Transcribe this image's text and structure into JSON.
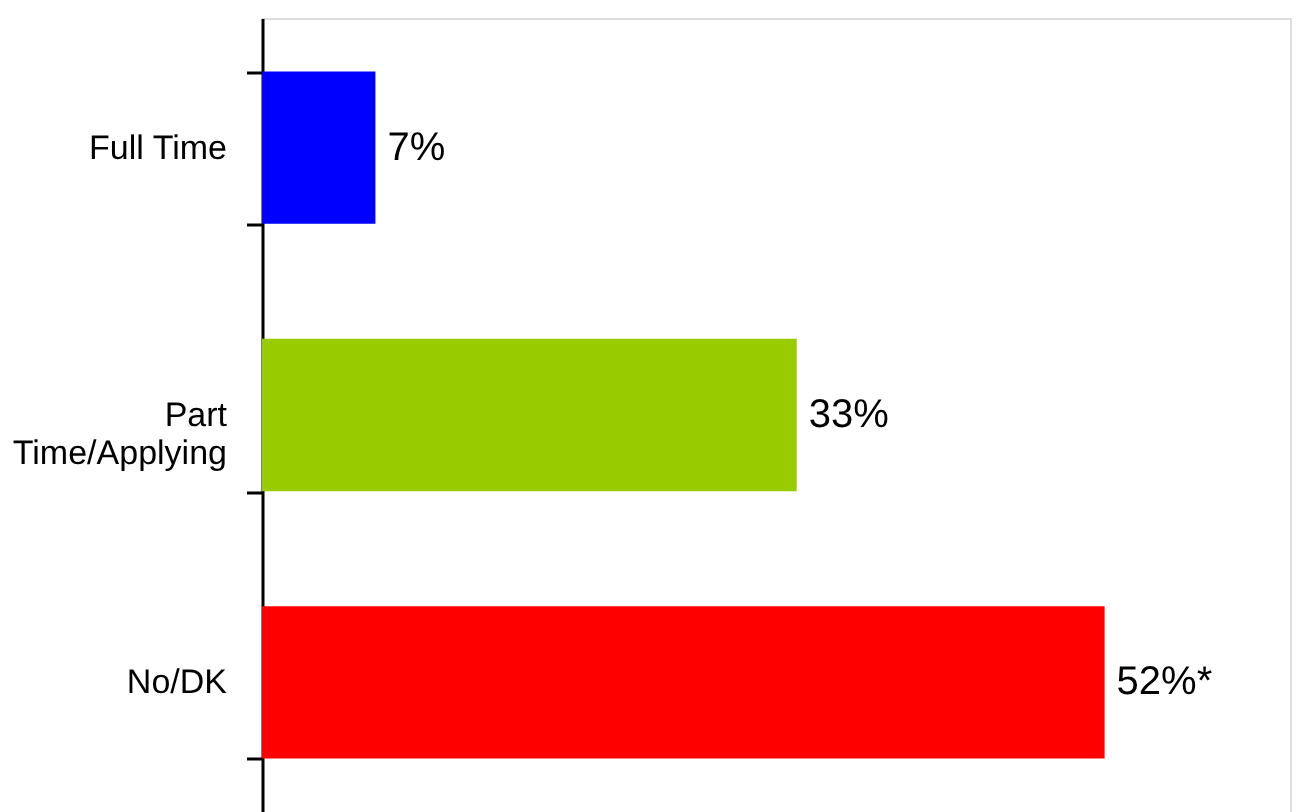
{
  "chart_data": {
    "type": "bar",
    "orientation": "horizontal",
    "categories": [
      "Full Time",
      "Part Time/Applying",
      "No/DK"
    ],
    "values": [
      7,
      33,
      52
    ],
    "colors": [
      "#0000ff",
      "#99cc00",
      "#ff0000"
    ],
    "value_labels": [
      "7%",
      "33%",
      "52%*"
    ]
  }
}
